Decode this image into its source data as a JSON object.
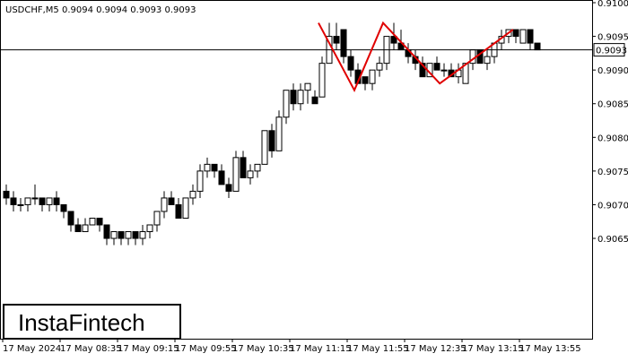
{
  "chart_data": {
    "type": "candlestick",
    "title": "USDCHF,M5  0.9094 0.9094 0.9093 0.9093",
    "watermark": "InstaFintech",
    "categories": [
      "17 May 2024",
      null,
      null,
      null,
      null,
      null,
      null,
      null,
      "17 May 08:35",
      null,
      null,
      null,
      null,
      null,
      null,
      null,
      "17 May 09:15",
      null,
      null,
      null,
      null,
      null,
      null,
      null,
      "17 May 09:55",
      null,
      null,
      null,
      null,
      null,
      null,
      null,
      "17 May 10:35",
      null,
      null,
      null,
      null,
      null,
      null,
      null,
      "17 May 11:15",
      null,
      null,
      null,
      null,
      null,
      null,
      null,
      "17 May 11:55",
      null,
      null,
      null,
      null,
      null,
      null,
      null,
      "17 May 12:35",
      null,
      null,
      null,
      null,
      null,
      null,
      null,
      "17 May 13:15",
      null,
      null,
      null,
      null,
      null,
      null,
      null,
      "17 May 13:55",
      null,
      null
    ],
    "open": [
      0.9072,
      0.9071,
      0.907,
      0.907,
      0.9071,
      0.9071,
      0.907,
      0.9071,
      0.907,
      0.9069,
      0.9067,
      0.9066,
      0.9067,
      0.9068,
      0.9067,
      0.9065,
      0.9066,
      0.9065,
      0.9066,
      0.9065,
      0.9066,
      0.9067,
      0.9069,
      0.9071,
      0.907,
      0.9068,
      0.9071,
      0.9072,
      0.9075,
      0.9076,
      0.9075,
      0.9073,
      0.9072,
      0.9077,
      0.9074,
      0.9075,
      0.9076,
      0.9081,
      0.9078,
      0.9083,
      0.9087,
      0.9085,
      0.9087,
      0.9086,
      0.9086,
      0.9091,
      0.9095,
      0.9096,
      0.9092,
      0.909,
      0.9089,
      0.9088,
      0.909,
      0.9091,
      0.9095,
      0.9094,
      0.9093,
      0.9092,
      0.9091,
      0.9089,
      0.9091,
      0.909,
      0.909,
      0.9089,
      0.9088,
      0.9091,
      0.9093,
      0.9091,
      0.9092,
      0.9094,
      0.9095,
      0.9096,
      0.9094,
      0.9096,
      0.9094
    ],
    "high": [
      0.9073,
      0.9072,
      0.9071,
      0.9071,
      0.9073,
      0.9071,
      0.9071,
      0.9072,
      0.907,
      0.9069,
      0.9068,
      0.9068,
      0.9068,
      0.9068,
      0.9067,
      0.9066,
      0.9066,
      0.9066,
      0.9066,
      0.9067,
      0.9067,
      0.9069,
      0.9072,
      0.9072,
      0.9071,
      0.9071,
      0.9073,
      0.9076,
      0.9077,
      0.9076,
      0.9076,
      0.9074,
      0.9078,
      0.9078,
      0.9076,
      0.9076,
      0.9081,
      0.9082,
      0.9084,
      0.9087,
      0.9088,
      0.9088,
      0.9088,
      0.9087,
      0.9092,
      0.9097,
      0.9097,
      0.9096,
      0.9093,
      0.9091,
      0.9089,
      0.909,
      0.9092,
      0.9095,
      0.9097,
      0.9096,
      0.9094,
      0.9093,
      0.9092,
      0.9091,
      0.9092,
      0.9091,
      0.9091,
      0.9091,
      0.9091,
      0.9093,
      0.9093,
      0.9093,
      0.9094,
      0.9096,
      0.9096,
      0.9096,
      0.9096,
      0.9096,
      0.9094
    ],
    "low": [
      0.907,
      0.9069,
      0.9069,
      0.9069,
      0.907,
      0.9069,
      0.9069,
      0.9069,
      0.9068,
      0.9066,
      0.9066,
      0.9066,
      0.9067,
      0.9066,
      0.9064,
      0.9064,
      0.9064,
      0.9064,
      0.9064,
      0.9064,
      0.9065,
      0.9066,
      0.9068,
      0.907,
      0.9068,
      0.9068,
      0.907,
      0.9071,
      0.9074,
      0.9074,
      0.9073,
      0.9071,
      0.9072,
      0.9074,
      0.9073,
      0.9074,
      0.9076,
      0.9077,
      0.9078,
      0.9082,
      0.9084,
      0.9084,
      0.9085,
      0.9085,
      0.9086,
      0.9091,
      0.9093,
      0.9091,
      0.9089,
      0.9088,
      0.9087,
      0.9087,
      0.9089,
      0.909,
      0.9093,
      0.9093,
      0.9091,
      0.909,
      0.9089,
      0.9089,
      0.909,
      0.9089,
      0.9089,
      0.9088,
      0.9088,
      0.909,
      0.9091,
      0.909,
      0.9091,
      0.9093,
      0.9094,
      0.9094,
      0.9094,
      0.9093,
      0.9093
    ],
    "close": [
      0.9071,
      0.907,
      0.907,
      0.9071,
      0.9071,
      0.907,
      0.9071,
      0.907,
      0.9069,
      0.9067,
      0.9066,
      0.9067,
      0.9068,
      0.9067,
      0.9065,
      0.9066,
      0.9065,
      0.9066,
      0.9065,
      0.9066,
      0.9067,
      0.9069,
      0.9071,
      0.907,
      0.9068,
      0.9071,
      0.9072,
      0.9075,
      0.9076,
      0.9075,
      0.9073,
      0.9072,
      0.9077,
      0.9074,
      0.9075,
      0.9076,
      0.9081,
      0.9078,
      0.9083,
      0.9087,
      0.9085,
      0.9087,
      0.9088,
      0.9085,
      0.9091,
      0.9095,
      0.9094,
      0.9092,
      0.909,
      0.9088,
      0.9088,
      0.909,
      0.9091,
      0.9095,
      0.9094,
      0.9093,
      0.9092,
      0.9091,
      0.9089,
      0.9091,
      0.909,
      0.909,
      0.9089,
      0.909,
      0.9091,
      0.9093,
      0.9091,
      0.9092,
      0.9094,
      0.9095,
      0.9096,
      0.9095,
      0.9096,
      0.9094,
      0.9093
    ],
    "current_price": 0.9093,
    "price_line_color": "#000000",
    "bull_color": "#ffffff",
    "bear_color": "#000000",
    "pattern": {
      "color": "#e00000",
      "x": [
        43.5,
        48.5,
        52.5,
        60.4,
        70.6
      ],
      "values": [
        0.9097,
        0.9087,
        0.9097,
        0.9088,
        0.9096
      ]
    },
    "ylim": [
      0.90501,
      0.91004
    ],
    "yticks": [
      0.9065,
      {
        "value": 0.907,
        "label": "0.9070"
      },
      0.9075,
      {
        "value": 0.908,
        "label": "0.9080"
      },
      0.9085,
      {
        "value": 0.909,
        "label": "0.9090"
      },
      0.9095,
      {
        "value": 0.91,
        "label": "0.9100"
      }
    ]
  }
}
